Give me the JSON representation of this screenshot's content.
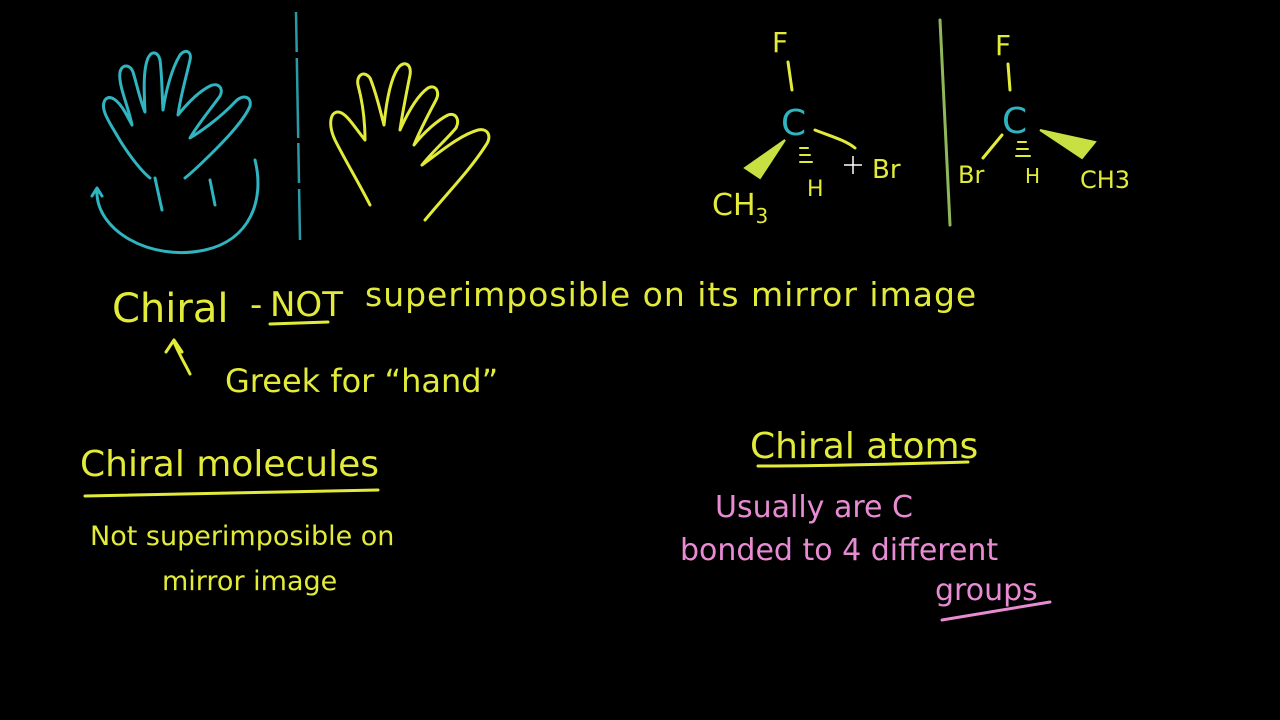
{
  "colors": {
    "background": "#000000",
    "cyan": "#2fb4c0",
    "yellow": "#e3eb3a",
    "green_yellow": "#c9e042",
    "pink": "#e78bd2",
    "mirror": "#8fb85a"
  },
  "molecule_left": {
    "top": "F",
    "center": "C",
    "wedge": "CH",
    "wedge_sub": "3",
    "dash": "H",
    "right": "Br"
  },
  "molecule_right": {
    "top": "F",
    "center": "C",
    "left": "Br",
    "dash": "H",
    "wedge": "CH3"
  },
  "definition": {
    "term": "Chiral",
    "dash": "-",
    "not": "NOT",
    "rest": "superimposible on its mirror image",
    "greek": "Greek for “hand”"
  },
  "chiral_molecules": {
    "heading": "Chiral molecules",
    "line1": "Not superimposible on",
    "line2": "mirror image"
  },
  "chiral_atoms": {
    "heading": "Chiral atoms",
    "line1": "Usually are C",
    "line2": "bonded to 4 different",
    "line3": "groups"
  }
}
